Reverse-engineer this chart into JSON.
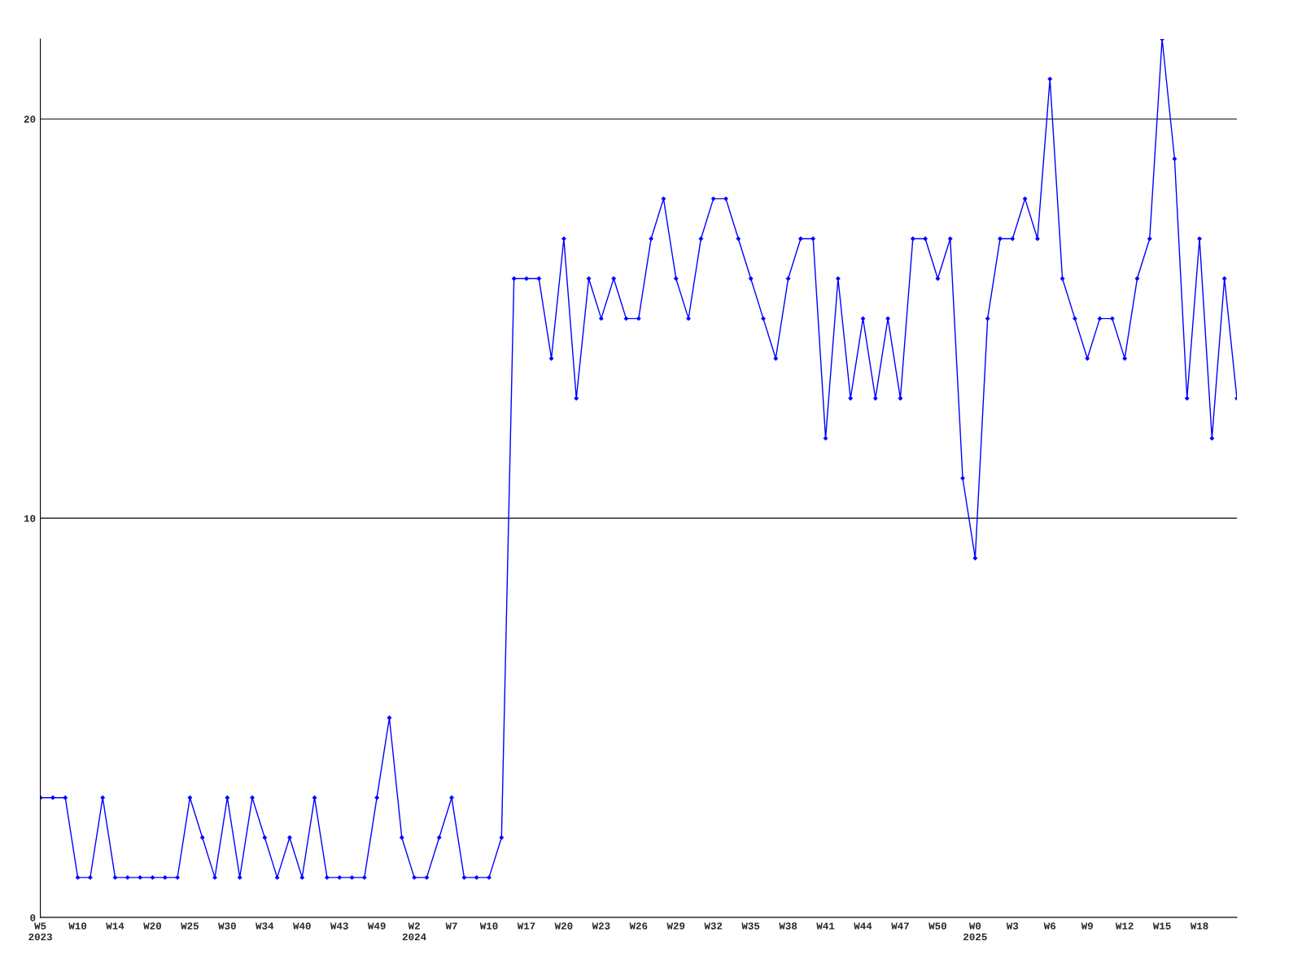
{
  "chart_data": {
    "type": "line",
    "categories": [
      "W5\n2023",
      null,
      null,
      "W10",
      null,
      null,
      "W14",
      null,
      null,
      "W20",
      null,
      null,
      "W25",
      null,
      null,
      "W30",
      null,
      null,
      "W34",
      null,
      null,
      "W40",
      null,
      null,
      "W43",
      null,
      null,
      "W49",
      null,
      null,
      "W2\n2024",
      null,
      null,
      "W7",
      null,
      null,
      "W10",
      null,
      null,
      "W17",
      null,
      null,
      "W20",
      null,
      null,
      "W23",
      null,
      null,
      "W26",
      null,
      null,
      "W29",
      null,
      null,
      "W32",
      null,
      null,
      "W35",
      null,
      null,
      "W38",
      null,
      null,
      "W41",
      null,
      null,
      "W44",
      null,
      null,
      "W47",
      null,
      null,
      "W50",
      null,
      null,
      "W0\n2025",
      null,
      null,
      "W3",
      null,
      null,
      "W6",
      null,
      null,
      "W9",
      null,
      null,
      "W12",
      null,
      null,
      "W15",
      null,
      null,
      "W18",
      null,
      null,
      null
    ],
    "series": [
      {
        "color": "#0000ff",
        "values": [
          3,
          3,
          3,
          1,
          1,
          3,
          1,
          1,
          1,
          1,
          1,
          1,
          3,
          2,
          1,
          3,
          1,
          3,
          2,
          1,
          2,
          1,
          3,
          1,
          1,
          1,
          1,
          3,
          5,
          2,
          1,
          1,
          2,
          3,
          1,
          1,
          1,
          2,
          16,
          16,
          16,
          14,
          17,
          13,
          16,
          15,
          16,
          15,
          15,
          17,
          18,
          16,
          15,
          17,
          18,
          18,
          17,
          16,
          15,
          14,
          16,
          17,
          17,
          12,
          16,
          13,
          15,
          13,
          15,
          13,
          17,
          17,
          16,
          17,
          11,
          9,
          15,
          17,
          17,
          18,
          17,
          21,
          16,
          15,
          14,
          15,
          15,
          14,
          16,
          17,
          22,
          19,
          13,
          17,
          12,
          16,
          13
        ]
      }
    ],
    "ylim": [
      0,
      22
    ],
    "yticks": [
      0,
      10,
      20
    ],
    "grid": "y",
    "marker": "diamond",
    "line_style": "solid",
    "legend": false
  }
}
